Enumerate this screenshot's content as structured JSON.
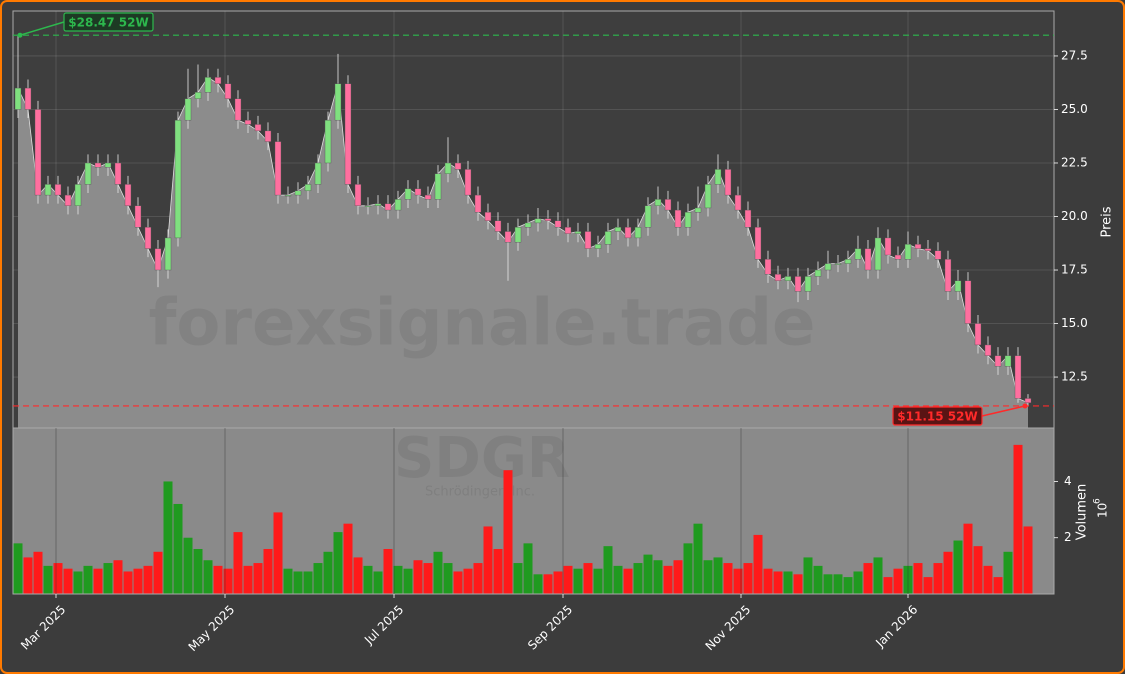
{
  "chart_data": {
    "type": "candlestick",
    "watermark": "forexsignale.trade",
    "symbol": "SDGR",
    "company": "Schrödinger, Inc.",
    "ylabel": "Preis",
    "volume_ylabel": "Volumen",
    "volume_offset_base": "10",
    "volume_offset_exp": "6",
    "up_color": "#7fe07f",
    "down_color": "#ff6f9f",
    "volume_up_color": "#1f9a1f",
    "volume_down_color": "#ff1a1a",
    "grid": true,
    "xlim": [
      -0.5,
      103.6
    ],
    "xticks": [
      {
        "value": 3.8,
        "label": "Mar 2025"
      },
      {
        "value": 20.7,
        "label": "May 2025"
      },
      {
        "value": 37.6,
        "label": "Jul 2025"
      },
      {
        "value": 54.5,
        "label": "Sep 2025"
      },
      {
        "value": 72.3,
        "label": "Nov 2025"
      },
      {
        "value": 89.0,
        "label": "Jan 2026"
      }
    ],
    "ylim": [
      10.12,
      29.6
    ],
    "yticks": [
      12.5,
      {
        "value": 15,
        "label": "15.0"
      },
      17.5,
      {
        "value": 20,
        "label": "20.0"
      },
      22.5,
      {
        "value": 25,
        "label": "25.0"
      },
      27.5
    ],
    "volume_ylim": [
      0,
      5.9
    ],
    "volume_yticks": [
      2,
      4
    ],
    "annotations": [
      {
        "text": "$28.47 52W",
        "value": 28.47,
        "color": "#2db84d"
      },
      {
        "text": "$11.15 52W",
        "value": 11.15,
        "color": "#ff2a2a"
      }
    ],
    "open": [
      25.0,
      26.0,
      25.0,
      21.0,
      21.5,
      21.0,
      20.5,
      21.5,
      22.5,
      22.3,
      22.5,
      21.5,
      20.5,
      19.5,
      18.5,
      17.5,
      19.0,
      24.5,
      25.5,
      25.8,
      26.5,
      26.2,
      25.5,
      24.5,
      24.3,
      24.0,
      23.5,
      21.0,
      21.0,
      21.2,
      21.5,
      22.5,
      24.5,
      26.2,
      21.5,
      20.5,
      20.5,
      20.6,
      20.3,
      20.8,
      21.3,
      21.0,
      20.8,
      22.0,
      22.5,
      22.2,
      21.0,
      20.2,
      19.8,
      19.3,
      18.8,
      19.5,
      19.7,
      19.9,
      19.8,
      19.5,
      19.2,
      19.3,
      18.5,
      18.7,
      19.3,
      19.5,
      19.0,
      19.5,
      20.5,
      20.8,
      20.3,
      19.5,
      20.2,
      20.4,
      21.5,
      22.2,
      21.0,
      20.3,
      19.5,
      18.0,
      17.3,
      17.0,
      17.2,
      16.5,
      17.2,
      17.5,
      17.8,
      17.8,
      18.0,
      18.5,
      17.5,
      19.0,
      18.2,
      18.0,
      18.7,
      18.5,
      18.4,
      18.0,
      16.5,
      17.0,
      15.0,
      14.0,
      13.5,
      13.0,
      13.5,
      11.5
    ],
    "high": [
      28.47,
      26.4,
      25.4,
      21.9,
      21.9,
      21.4,
      21.9,
      22.9,
      22.9,
      22.9,
      22.9,
      21.9,
      20.9,
      19.9,
      18.9,
      19.4,
      24.9,
      26.9,
      27.1,
      26.9,
      26.9,
      26.6,
      25.9,
      24.9,
      24.7,
      24.4,
      23.9,
      21.4,
      21.6,
      21.9,
      22.9,
      24.9,
      27.6,
      26.6,
      21.9,
      20.9,
      21.0,
      21.0,
      21.2,
      21.7,
      21.7,
      21.4,
      22.4,
      23.7,
      22.9,
      22.6,
      21.4,
      20.6,
      20.2,
      19.7,
      19.9,
      20.1,
      20.4,
      20.3,
      20.2,
      19.9,
      19.7,
      19.7,
      19.1,
      19.7,
      19.9,
      19.9,
      19.9,
      20.9,
      21.4,
      21.2,
      20.7,
      20.6,
      21.4,
      21.9,
      22.9,
      22.6,
      21.4,
      20.7,
      19.9,
      18.4,
      17.7,
      17.6,
      17.6,
      17.6,
      17.9,
      18.4,
      18.2,
      18.4,
      19.1,
      18.9,
      19.5,
      19.4,
      18.6,
      19.3,
      19.1,
      18.9,
      18.8,
      18.4,
      17.5,
      17.4,
      15.4,
      14.4,
      13.9,
      13.9,
      13.9,
      11.7
    ],
    "low": [
      24.6,
      24.6,
      20.6,
      20.6,
      20.6,
      20.1,
      20.1,
      21.1,
      21.9,
      21.9,
      21.1,
      20.1,
      19.1,
      18.1,
      16.7,
      17.1,
      18.6,
      24.1,
      25.1,
      25.4,
      25.8,
      25.1,
      24.1,
      23.9,
      23.6,
      23.1,
      20.6,
      20.6,
      20.6,
      20.8,
      21.1,
      22.1,
      24.1,
      21.1,
      20.1,
      20.1,
      20.1,
      19.9,
      19.9,
      20.4,
      20.6,
      20.4,
      20.4,
      21.6,
      21.8,
      20.6,
      19.8,
      19.4,
      18.9,
      17.0,
      18.4,
      19.1,
      19.3,
      19.4,
      19.1,
      18.8,
      18.8,
      18.1,
      18.1,
      18.3,
      18.9,
      18.6,
      18.6,
      19.1,
      20.1,
      19.9,
      19.1,
      19.1,
      19.8,
      20.0,
      21.1,
      20.6,
      19.9,
      19.1,
      17.6,
      16.9,
      16.6,
      16.6,
      16.0,
      16.1,
      16.8,
      17.1,
      17.4,
      17.4,
      17.6,
      17.1,
      17.1,
      17.8,
      17.6,
      17.6,
      18.1,
      18.0,
      17.6,
      16.1,
      16.1,
      14.6,
      13.6,
      13.1,
      12.6,
      12.6,
      11.3,
      11.15
    ],
    "close": [
      26.0,
      25.0,
      21.0,
      21.5,
      21.0,
      20.5,
      21.5,
      22.5,
      22.3,
      22.5,
      21.5,
      20.5,
      19.5,
      18.5,
      17.5,
      19.0,
      24.5,
      25.5,
      25.8,
      26.5,
      26.2,
      25.5,
      24.5,
      24.3,
      24.0,
      23.5,
      21.0,
      21.0,
      21.2,
      21.5,
      22.5,
      24.5,
      26.2,
      21.5,
      20.5,
      20.5,
      20.6,
      20.3,
      20.8,
      21.3,
      21.0,
      20.8,
      22.0,
      22.5,
      22.2,
      21.0,
      20.2,
      19.8,
      19.3,
      18.8,
      19.5,
      19.7,
      19.9,
      19.8,
      19.5,
      19.2,
      19.3,
      18.5,
      18.7,
      19.3,
      19.5,
      19.0,
      19.5,
      20.5,
      20.8,
      20.3,
      19.5,
      20.2,
      20.4,
      21.5,
      22.2,
      21.0,
      20.3,
      19.5,
      18.0,
      17.3,
      17.0,
      17.2,
      16.5,
      17.2,
      17.5,
      17.8,
      17.8,
      18.0,
      18.5,
      17.5,
      19.0,
      18.2,
      18.0,
      18.7,
      18.5,
      18.4,
      18.0,
      16.5,
      17.0,
      15.0,
      14.0,
      13.5,
      13.0,
      13.5,
      11.5,
      11.3
    ],
    "volume": [
      1.8,
      1.3,
      1.5,
      1.0,
      1.1,
      0.9,
      0.8,
      1.0,
      0.9,
      1.1,
      1.2,
      0.8,
      0.9,
      1.0,
      1.5,
      4.0,
      3.2,
      2.0,
      1.6,
      1.2,
      1.0,
      0.9,
      2.2,
      1.0,
      1.1,
      1.6,
      2.9,
      0.9,
      0.8,
      0.8,
      1.1,
      1.5,
      2.2,
      2.5,
      1.3,
      1.0,
      0.8,
      1.6,
      1.0,
      0.9,
      1.2,
      1.1,
      1.5,
      1.1,
      0.8,
      0.9,
      1.1,
      2.4,
      1.6,
      4.4,
      1.1,
      1.8,
      0.7,
      0.7,
      0.8,
      1.0,
      0.9,
      1.1,
      0.9,
      1.7,
      1.0,
      0.9,
      1.1,
      1.4,
      1.2,
      1.0,
      1.2,
      1.8,
      2.5,
      1.2,
      1.3,
      1.1,
      0.9,
      1.1,
      2.1,
      0.9,
      0.8,
      0.8,
      0.7,
      1.3,
      1.0,
      0.7,
      0.7,
      0.6,
      0.8,
      1.1,
      1.3,
      0.6,
      0.9,
      1.0,
      1.1,
      0.6,
      1.1,
      1.5,
      1.9,
      2.5,
      1.7,
      1.0,
      0.6,
      1.5,
      5.3,
      2.4
    ]
  }
}
